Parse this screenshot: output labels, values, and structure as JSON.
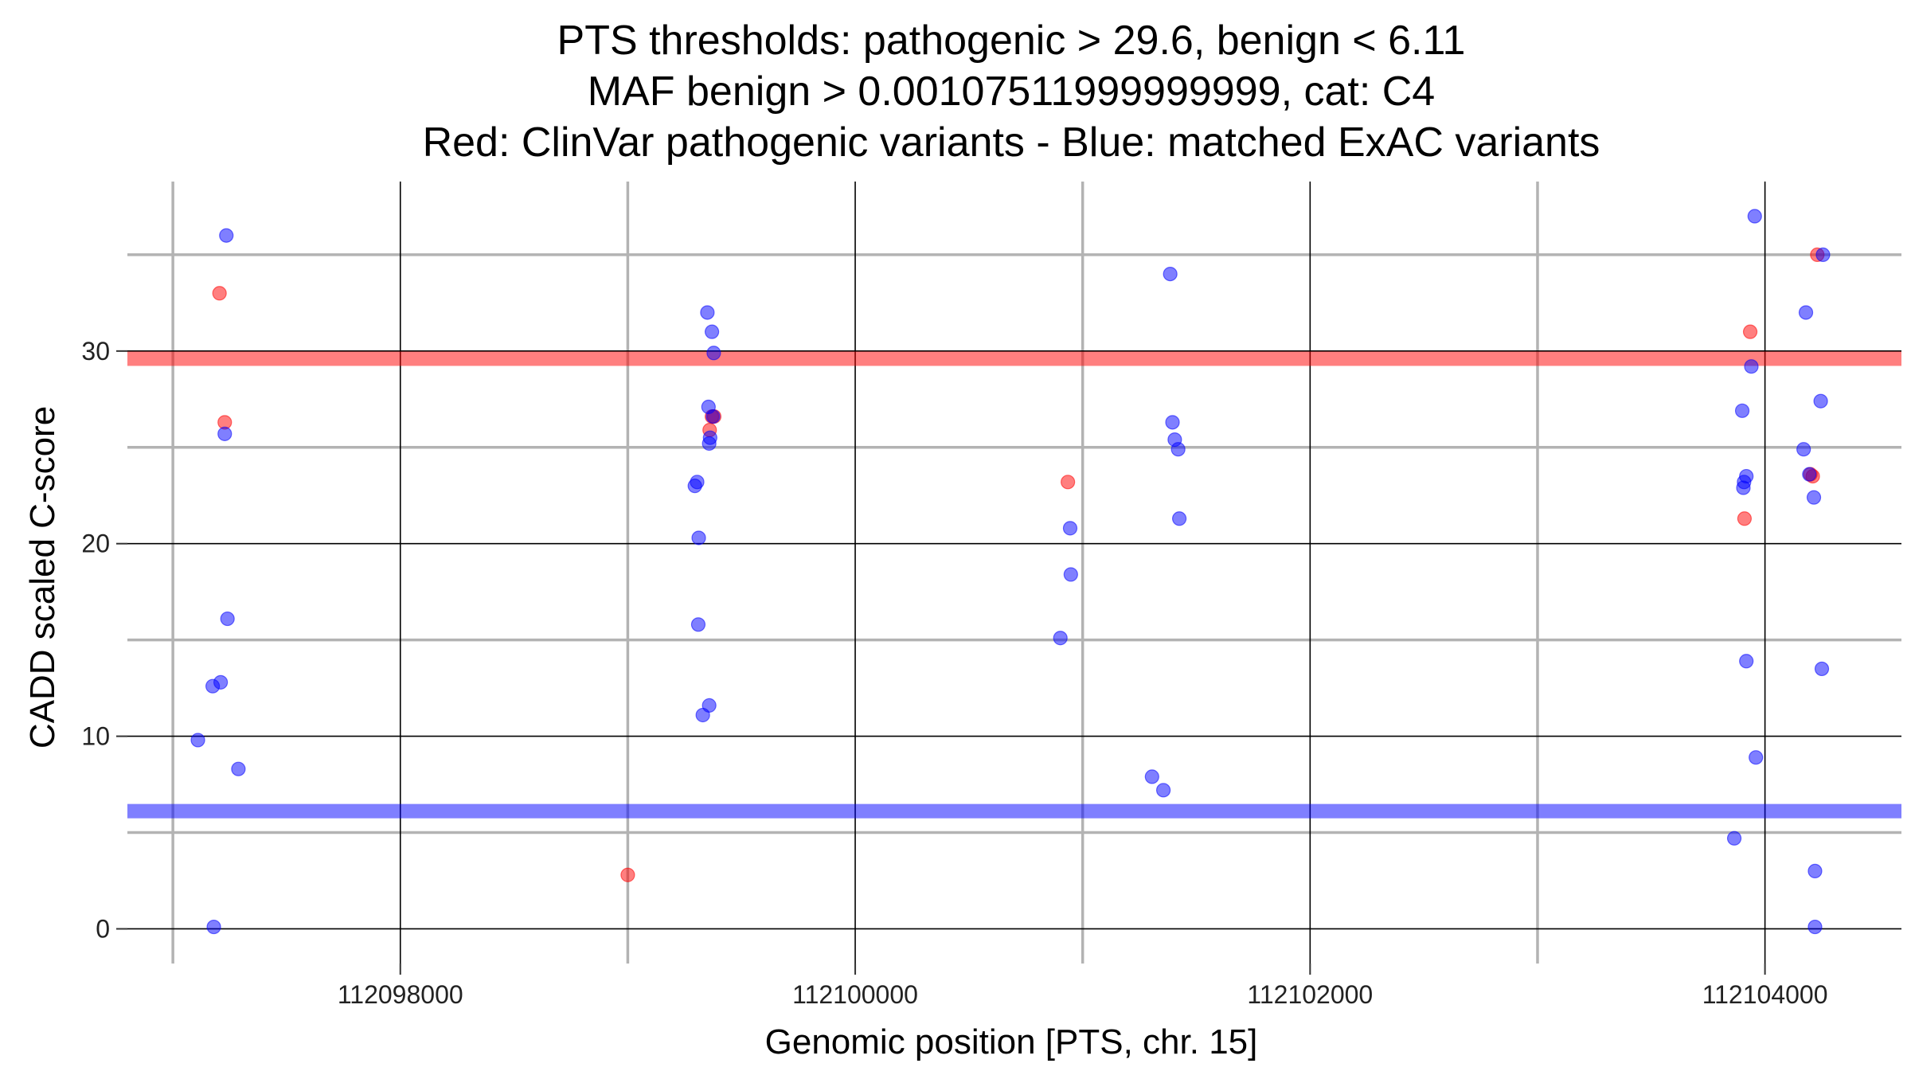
{
  "chart_data": {
    "type": "scatter",
    "title": [
      "PTS thresholds: pathogenic > 29.6, benign < 6.11",
      "MAF benign > 0.00107511999999999, cat: C4",
      "Red: ClinVar pathogenic variants - Blue: matched ExAC variants"
    ],
    "xlabel": "Genomic position [PTS, chr. 15]",
    "ylabel": "CADD scaled C-score",
    "xlim": [
      112096800,
      112104600
    ],
    "ylim": [
      -1.8,
      38.8
    ],
    "xticks": [
      112098000,
      112100000,
      112102000,
      112104000
    ],
    "xtick_labels": [
      "112098000",
      "112100000",
      "112102000",
      "112104000"
    ],
    "yticks": [
      0,
      10,
      20,
      30
    ],
    "ytick_labels": [
      "0",
      "10",
      "20",
      "30"
    ],
    "x_minor_grid": [
      112097000,
      112099000,
      112101000,
      112103000
    ],
    "y_minor_grid": [
      5,
      15,
      25,
      35
    ],
    "thresholds": [
      {
        "name": "pathogenic",
        "value": 29.6,
        "color": "#ff0000"
      },
      {
        "name": "benign",
        "value": 6.11,
        "color": "#0000ff"
      }
    ],
    "colors": {
      "pathogenic": "#ff0000",
      "benign": "#0000ff",
      "grid_major": "#000000",
      "grid_minor": "#b3b3b3"
    },
    "series": [
      {
        "name": "ClinVar pathogenic variants",
        "color": "#ff0000",
        "points": [
          [
            112097205,
            33
          ],
          [
            112097228,
            26.3
          ],
          [
            112099000,
            2.8
          ],
          [
            112099370,
            26.6
          ],
          [
            112099380,
            26.6
          ],
          [
            112099360,
            25.9
          ],
          [
            112100935,
            23.2
          ],
          [
            112103935,
            31
          ],
          [
            112103910,
            21.3
          ],
          [
            112104230,
            35
          ],
          [
            112104200,
            23.6
          ],
          [
            112104210,
            23.5
          ]
        ]
      },
      {
        "name": "matched ExAC variants",
        "color": "#0000ff",
        "points": [
          [
            112097235,
            36
          ],
          [
            112097228,
            25.7
          ],
          [
            112097240,
            16.1
          ],
          [
            112097175,
            12.6
          ],
          [
            112097210,
            12.8
          ],
          [
            112097110,
            9.8
          ],
          [
            112097288,
            8.3
          ],
          [
            112097180,
            0.1
          ],
          [
            112099350,
            32
          ],
          [
            112099370,
            31
          ],
          [
            112099378,
            29.9
          ],
          [
            112099355,
            27.1
          ],
          [
            112099375,
            26.6
          ],
          [
            112099362,
            25.5
          ],
          [
            112099358,
            25.2
          ],
          [
            112099305,
            23.2
          ],
          [
            112099295,
            23
          ],
          [
            112099312,
            20.3
          ],
          [
            112099310,
            15.8
          ],
          [
            112099358,
            11.6
          ],
          [
            112099330,
            11.1
          ],
          [
            112100945,
            20.8
          ],
          [
            112100948,
            18.4
          ],
          [
            112100902,
            15.1
          ],
          [
            112101385,
            34
          ],
          [
            112101395,
            26.3
          ],
          [
            112101405,
            25.4
          ],
          [
            112101420,
            24.9
          ],
          [
            112101425,
            21.3
          ],
          [
            112101305,
            7.9
          ],
          [
            112101355,
            7.2
          ],
          [
            112103955,
            37
          ],
          [
            112104180,
            32
          ],
          [
            112103940,
            29.2
          ],
          [
            112103900,
            26.9
          ],
          [
            112104170,
            24.9
          ],
          [
            112103918,
            23.5
          ],
          [
            112103908,
            23.2
          ],
          [
            112103905,
            22.9
          ],
          [
            112104195,
            23.6
          ],
          [
            112104215,
            22.4
          ],
          [
            112104255,
            35
          ],
          [
            112104245,
            27.4
          ],
          [
            112103918,
            13.9
          ],
          [
            112104250,
            13.5
          ],
          [
            112103960,
            8.9
          ],
          [
            112103865,
            4.7
          ],
          [
            112104220,
            3
          ],
          [
            112104220,
            0.1
          ]
        ]
      }
    ]
  }
}
